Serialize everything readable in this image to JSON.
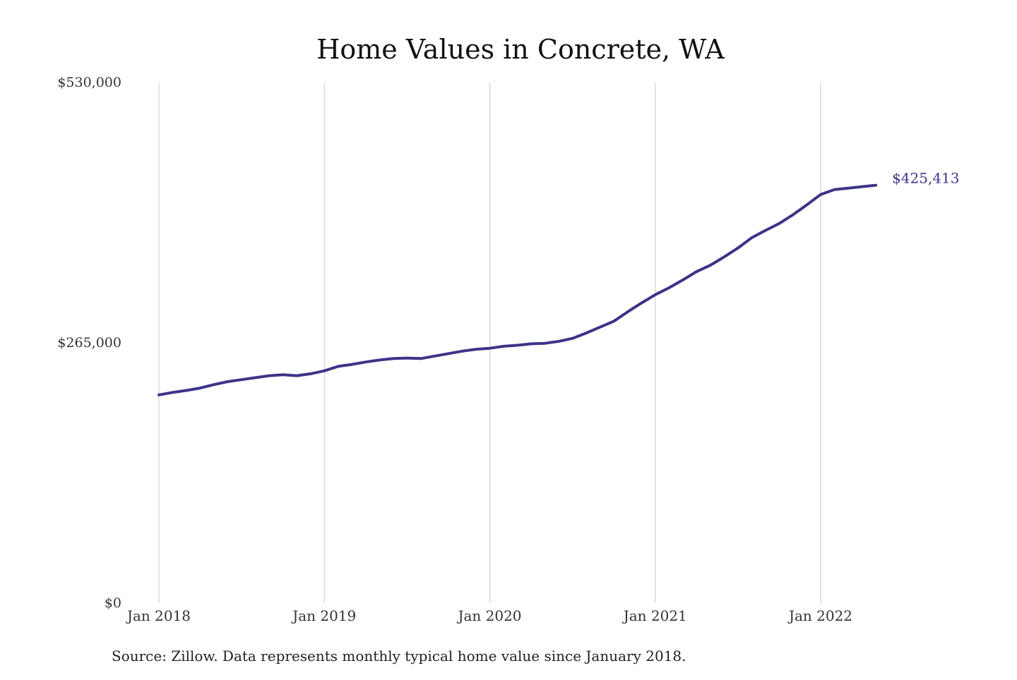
{
  "colors": {
    "series": "#3b3489",
    "grid": "#c8c8c8",
    "text": "#333333"
  },
  "chart_data": {
    "type": "line",
    "title": "Home Values in Concrete, WA",
    "source": "Source: Zillow. Data represents monthly typical home value since January 2018.",
    "xlabel": "",
    "ylabel": "",
    "ylim": [
      0,
      530000
    ],
    "yticks": [
      {
        "value": 0,
        "label": "$0"
      },
      {
        "value": 265000,
        "label": "$265,000"
      },
      {
        "value": 530000,
        "label": "$530,000"
      }
    ],
    "xticks": [
      {
        "date": "2018-01",
        "label": "Jan 2018"
      },
      {
        "date": "2019-01",
        "label": "Jan 2019"
      },
      {
        "date": "2020-01",
        "label": "Jan 2020"
      },
      {
        "date": "2021-01",
        "label": "Jan 2021"
      },
      {
        "date": "2022-01",
        "label": "Jan 2022"
      }
    ],
    "grid": "vertical",
    "x_range": [
      "2018-01",
      "2022-05"
    ],
    "end_label": "$425,413",
    "series": [
      {
        "x": [
          "2018-01",
          "2018-02",
          "2018-03",
          "2018-04",
          "2018-05",
          "2018-06",
          "2018-07",
          "2018-08",
          "2018-09",
          "2018-10",
          "2018-11",
          "2018-12",
          "2019-01",
          "2019-02",
          "2019-03",
          "2019-04",
          "2019-05",
          "2019-06",
          "2019-07",
          "2019-08",
          "2019-09",
          "2019-10",
          "2019-11",
          "2019-12",
          "2020-01",
          "2020-02",
          "2020-03",
          "2020-04",
          "2020-05",
          "2020-06",
          "2020-07",
          "2020-08",
          "2020-09",
          "2020-10",
          "2020-11",
          "2020-12",
          "2021-01",
          "2021-02",
          "2021-03",
          "2021-04",
          "2021-05",
          "2021-06",
          "2021-07",
          "2021-08",
          "2021-09",
          "2021-10",
          "2021-11",
          "2021-12",
          "2022-01",
          "2022-02",
          "2022-03",
          "2022-04",
          "2022-05"
        ],
        "values": [
          212000,
          214500,
          216500,
          219000,
          222500,
          225500,
          227500,
          229500,
          231500,
          232500,
          231500,
          233500,
          236500,
          241000,
          243000,
          245500,
          247500,
          249000,
          249500,
          249000,
          251500,
          254000,
          256500,
          258500,
          259500,
          261500,
          262500,
          264000,
          264500,
          266500,
          269500,
          275000,
          281000,
          287000,
          296500,
          305500,
          314000,
          321000,
          329000,
          337500,
          344000,
          352500,
          361500,
          372000,
          379500,
          386500,
          395500,
          405500,
          416000,
          421000,
          422500,
          424000,
          425413
        ]
      }
    ]
  }
}
